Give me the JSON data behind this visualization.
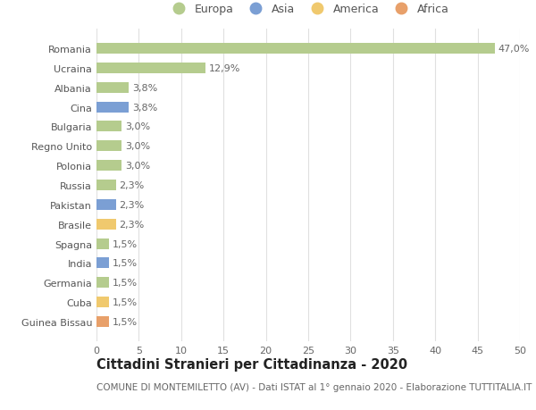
{
  "countries": [
    "Romania",
    "Ucraina",
    "Albania",
    "Cina",
    "Bulgaria",
    "Regno Unito",
    "Polonia",
    "Russia",
    "Pakistan",
    "Brasile",
    "Spagna",
    "India",
    "Germania",
    "Cuba",
    "Guinea Bissau"
  ],
  "values": [
    47.0,
    12.9,
    3.8,
    3.8,
    3.0,
    3.0,
    3.0,
    2.3,
    2.3,
    2.3,
    1.5,
    1.5,
    1.5,
    1.5,
    1.5
  ],
  "labels": [
    "47,0%",
    "12,9%",
    "3,8%",
    "3,8%",
    "3,0%",
    "3,0%",
    "3,0%",
    "2,3%",
    "2,3%",
    "2,3%",
    "1,5%",
    "1,5%",
    "1,5%",
    "1,5%",
    "1,5%"
  ],
  "continents": [
    "Europa",
    "Europa",
    "Europa",
    "Asia",
    "Europa",
    "Europa",
    "Europa",
    "Europa",
    "Asia",
    "America",
    "Europa",
    "Asia",
    "Europa",
    "America",
    "Africa"
  ],
  "continent_colors": {
    "Europa": "#b5cc8e",
    "Asia": "#7b9fd4",
    "America": "#f0c96e",
    "Africa": "#e8a06a"
  },
  "legend_order": [
    "Europa",
    "Asia",
    "America",
    "Africa"
  ],
  "title": "Cittadini Stranieri per Cittadinanza - 2020",
  "subtitle": "COMUNE DI MONTEMILETTO (AV) - Dati ISTAT al 1° gennaio 2020 - Elaborazione TUTTITALIA.IT",
  "xlim": [
    0,
    50
  ],
  "xticks": [
    0,
    5,
    10,
    15,
    20,
    25,
    30,
    35,
    40,
    45,
    50
  ],
  "background_color": "#ffffff",
  "grid_color": "#e0e0e0",
  "title_fontsize": 10.5,
  "subtitle_fontsize": 7.5,
  "label_fontsize": 8,
  "tick_fontsize": 8,
  "legend_fontsize": 9
}
